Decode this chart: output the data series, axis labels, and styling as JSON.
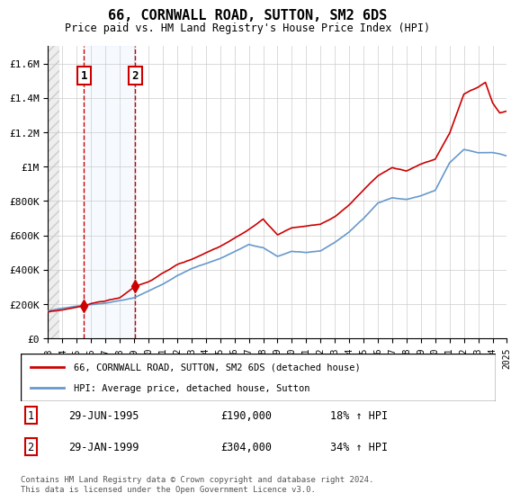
{
  "title": "66, CORNWALL ROAD, SUTTON, SM2 6DS",
  "subtitle": "Price paid vs. HM Land Registry's House Price Index (HPI)",
  "sale1_date_num": 1995.5,
  "sale2_date_num": 1999.08,
  "sale1_price": 190000,
  "sale2_price": 304000,
  "sale1_label": "1",
  "sale2_label": "2",
  "sale1_date_str": "29-JUN-1995",
  "sale2_date_str": "29-JAN-1999",
  "sale1_hpi": "18% ↑ HPI",
  "sale2_hpi": "34% ↑ HPI",
  "legend_line1": "66, CORNWALL ROAD, SUTTON, SM2 6DS (detached house)",
  "legend_line2": "HPI: Average price, detached house, Sutton",
  "footer": "Contains HM Land Registry data © Crown copyright and database right 2024.\nThis data is licensed under the Open Government Licence v3.0.",
  "ylim": [
    0,
    1700000
  ],
  "yticks": [
    0,
    200000,
    400000,
    600000,
    800000,
    1000000,
    1200000,
    1400000,
    1600000
  ],
  "ytick_labels": [
    "£0",
    "£200K",
    "£400K",
    "£600K",
    "£800K",
    "£1M",
    "£1.2M",
    "£1.4M",
    "£1.6M"
  ],
  "hpi_color": "#6699cc",
  "price_color": "#cc0000",
  "shade_color": "#ddeeff",
  "background_hatch_color": "#e8e8e8",
  "grid_color": "#cccccc"
}
